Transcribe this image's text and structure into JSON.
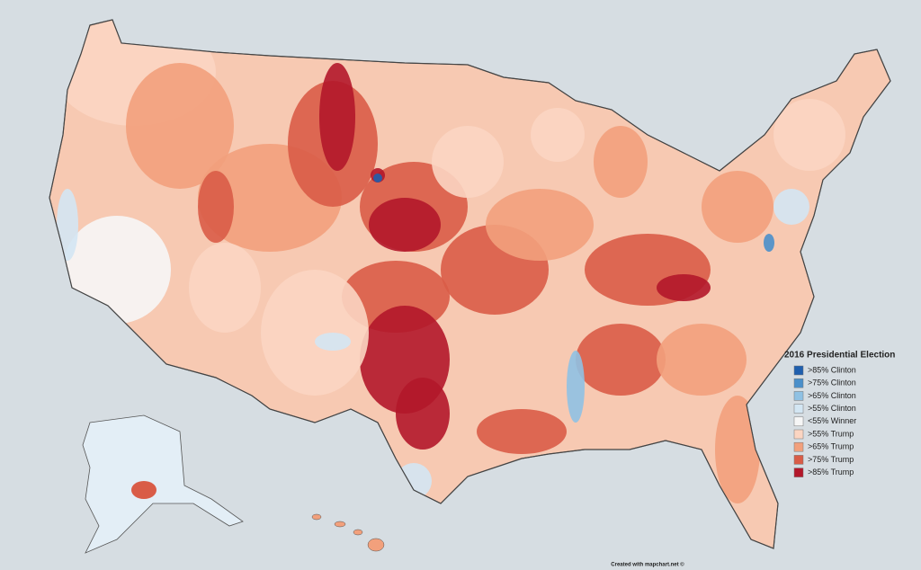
{
  "legend": {
    "title": "2016 Presidential Election",
    "items": [
      {
        "label": ">85% Clinton",
        "color": "#1f5fae"
      },
      {
        "label": ">75% Clinton",
        "color": "#4a8fca"
      },
      {
        "label": ">65% Clinton",
        "color": "#8fc1e3"
      },
      {
        "label": ">55% Clinton",
        "color": "#d3e6f3"
      },
      {
        "label": "<55% Winner",
        "color": "#f6f6f6"
      },
      {
        "label": ">55% Trump",
        "color": "#fbd5c2"
      },
      {
        "label": ">65% Trump",
        "color": "#f2a07c"
      },
      {
        "label": ">75% Trump",
        "color": "#d95c47"
      },
      {
        "label": ">85% Trump",
        "color": "#b3172a"
      }
    ]
  },
  "credit": "Created with mapchart.net ©"
}
